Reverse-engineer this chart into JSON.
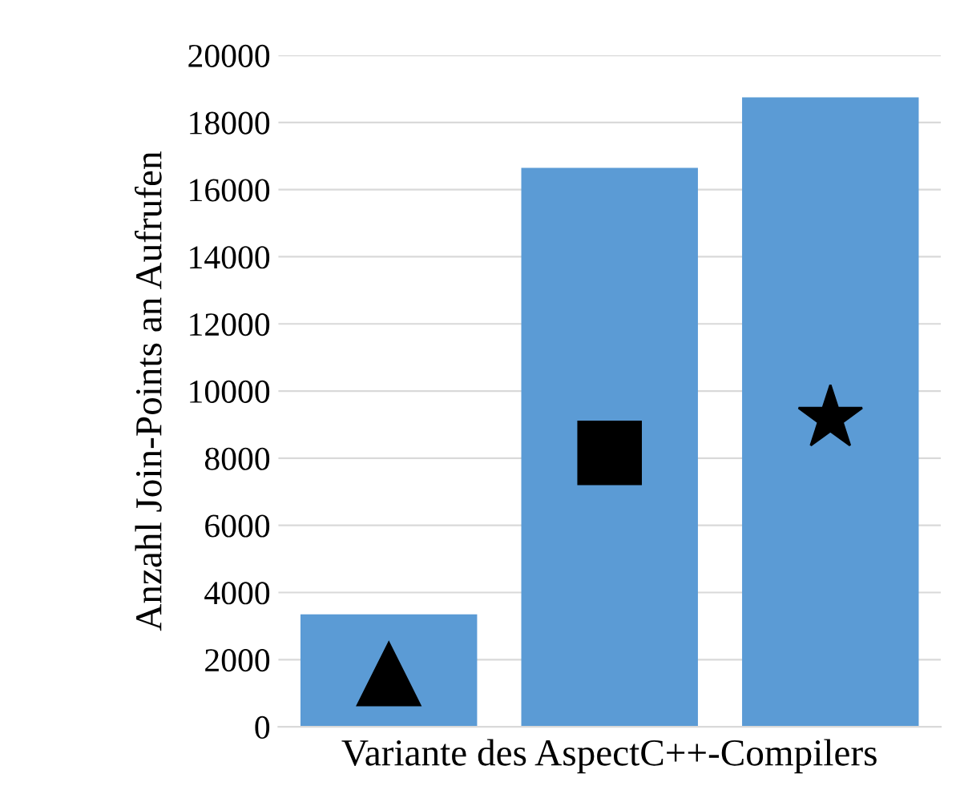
{
  "chart_data": {
    "type": "bar",
    "xlabel": "Variante des AspectC++-Compilers",
    "ylabel": "Anzahl Join-Points an Aufrufen",
    "categories": [
      null,
      null,
      null
    ],
    "values": [
      3350,
      16650,
      18750
    ],
    "color": "#5b9bd5",
    "ylim": [
      0,
      20000
    ],
    "yticks": [
      0,
      2000,
      4000,
      6000,
      8000,
      10000,
      12000,
      14000,
      16000,
      18000,
      20000
    ],
    "grid": "y"
  }
}
